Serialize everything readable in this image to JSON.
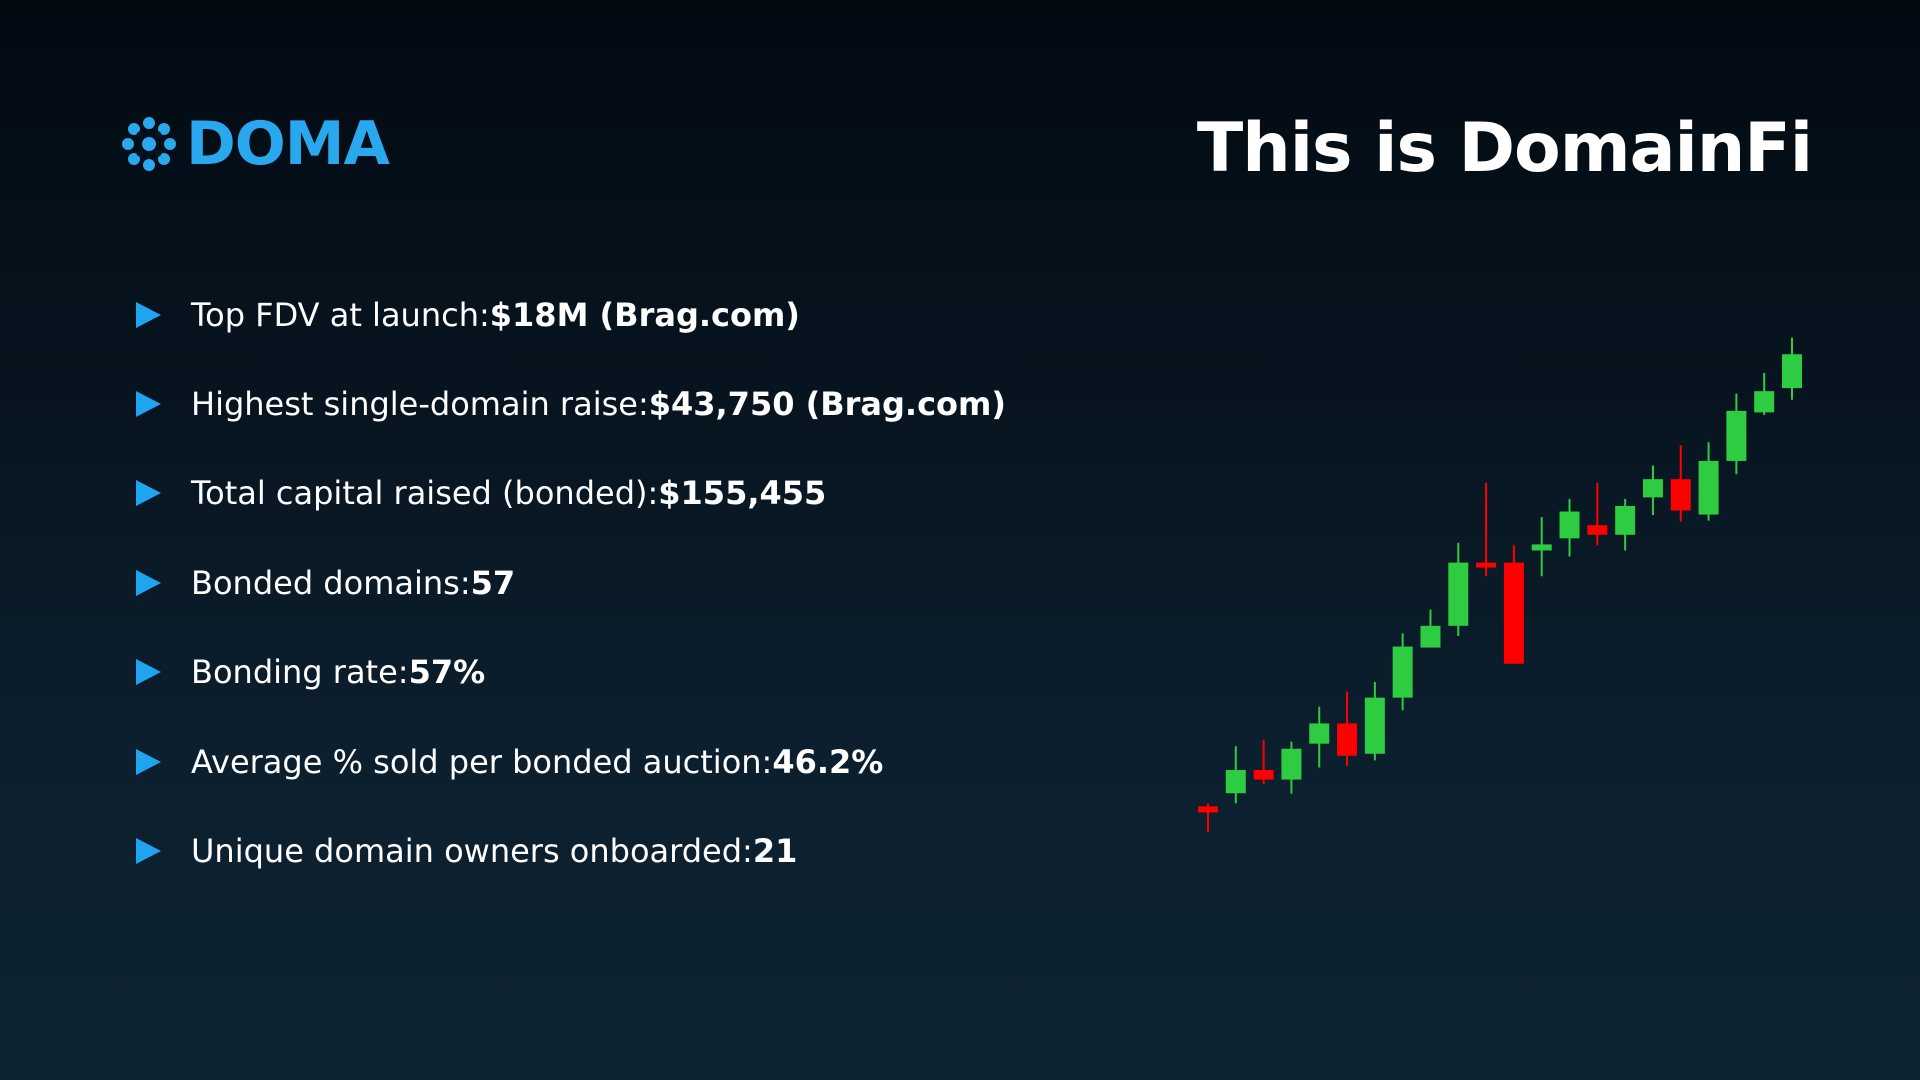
{
  "brand": {
    "logo_text": "DOMA",
    "logo_icon": "doma-flower-icon",
    "color": "#2aa8ee"
  },
  "header": {
    "title": "This is DomainFi"
  },
  "stats": [
    {
      "label": "Top FDV at launch: ",
      "value": "$18M (Brag.com)"
    },
    {
      "label": "Highest single-domain raise: ",
      "value": "$43,750 (Brag.com)"
    },
    {
      "label": "Total capital raised (bonded): ",
      "value": "$155,455"
    },
    {
      "label": "Bonded domains: ",
      "value": "57"
    },
    {
      "label": "Bonding rate: ",
      "value": "57%"
    },
    {
      "label": "Average % sold per bonded auction: ",
      "value": "46.2%"
    },
    {
      "label": "Unique domain owners onboarded: ",
      "value": "21"
    }
  ],
  "colors": {
    "bullet": "#1fa4f0",
    "up": "#2ecc40",
    "down": "#ff0000"
  },
  "chart_data": {
    "type": "candlestick",
    "ylim": [
      0,
      100
    ],
    "candles": [
      {
        "open": 10.6,
        "close": 9.4,
        "high": 11.2,
        "low": 5.6
      },
      {
        "open": 13.2,
        "close": 17.8,
        "high": 22.5,
        "low": 11.2
      },
      {
        "open": 17.8,
        "close": 15.9,
        "high": 23.8,
        "low": 15.0
      },
      {
        "open": 15.9,
        "close": 22.0,
        "high": 23.4,
        "low": 13.1
      },
      {
        "open": 23.0,
        "close": 27.0,
        "high": 30.3,
        "low": 18.3
      },
      {
        "open": 27.0,
        "close": 20.6,
        "high": 33.3,
        "low": 18.6
      },
      {
        "open": 21.0,
        "close": 32.1,
        "high": 35.2,
        "low": 19.7
      },
      {
        "open": 32.1,
        "close": 42.2,
        "high": 44.8,
        "low": 29.6
      },
      {
        "open": 42.0,
        "close": 46.3,
        "high": 49.5,
        "low": 42.2
      },
      {
        "open": 46.3,
        "close": 58.8,
        "high": 62.7,
        "low": 44.3
      },
      {
        "open": 58.8,
        "close": 58.3,
        "high": 74.6,
        "low": 56.1
      },
      {
        "open": 58.8,
        "close": 38.8,
        "high": 62.2,
        "low": 38.8
      },
      {
        "open": 61.2,
        "close": 62.4,
        "high": 67.8,
        "low": 56.1
      },
      {
        "open": 63.6,
        "close": 68.9,
        "high": 71.4,
        "low": 60.0
      },
      {
        "open": 66.2,
        "close": 64.3,
        "high": 74.6,
        "low": 62.2
      },
      {
        "open": 64.3,
        "close": 70.0,
        "high": 71.4,
        "low": 61.2
      },
      {
        "open": 71.7,
        "close": 75.3,
        "high": 78.0,
        "low": 68.2
      },
      {
        "open": 75.3,
        "close": 69.1,
        "high": 82.0,
        "low": 66.9
      },
      {
        "open": 68.3,
        "close": 78.9,
        "high": 82.6,
        "low": 67.1
      },
      {
        "open": 78.9,
        "close": 88.8,
        "high": 92.2,
        "low": 76.3
      },
      {
        "open": 88.5,
        "close": 92.7,
        "high": 96.3,
        "low": 88.0
      },
      {
        "open": 93.3,
        "close": 100.0,
        "high": 103.3,
        "low": 91.0
      }
    ]
  }
}
